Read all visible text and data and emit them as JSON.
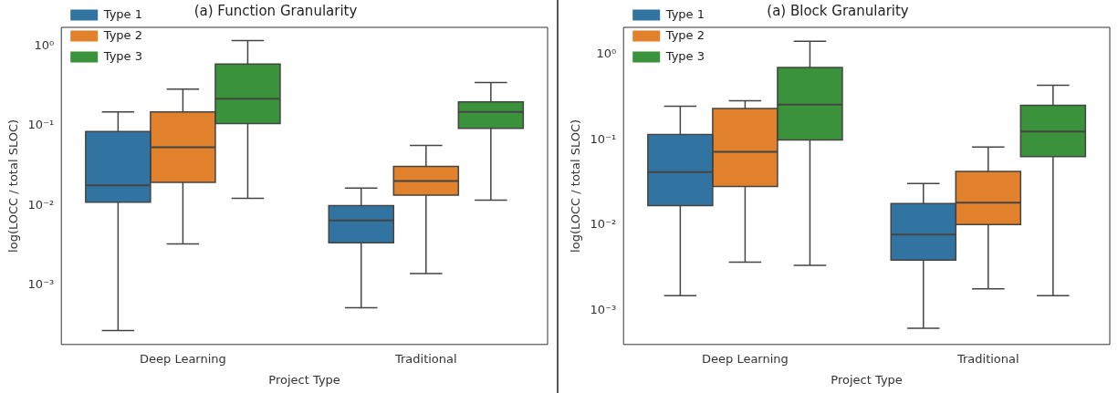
{
  "chart_data": [
    {
      "type": "box",
      "title": "(a) Function Granularity",
      "xlabel": "Project Type",
      "ylabel": "log(LOCC / total SLOC)",
      "log": "y",
      "legend": "top left",
      "categories": [
        "Deep Learning",
        "Traditional"
      ],
      "ylim": [
        0.00018,
        1.73
      ],
      "yticks": [
        {
          "value": 0.001,
          "label": "10⁻³"
        },
        {
          "value": 0.01,
          "label": "10⁻²"
        },
        {
          "value": 0.1,
          "label": "10⁻¹"
        },
        {
          "value": 1,
          "label": "10⁰"
        }
      ],
      "series": [
        {
          "name": "Type 1",
          "color": "#3274a1",
          "boxes": [
            {
              "low": 0.00027,
              "q1": 0.011,
              "median": 0.018,
              "q3": 0.085,
              "high": 0.15
            },
            {
              "low": 0.00052,
              "q1": 0.0034,
              "median": 0.0065,
              "q3": 0.01,
              "high": 0.0166
            }
          ]
        },
        {
          "name": "Type 2",
          "color": "#e1812c",
          "boxes": [
            {
              "low": 0.0033,
              "q1": 0.0195,
              "median": 0.054,
              "q3": 0.15,
              "high": 0.29
            },
            {
              "low": 0.0014,
              "q1": 0.0135,
              "median": 0.0204,
              "q3": 0.031,
              "high": 0.057
            }
          ]
        },
        {
          "name": "Type 3",
          "color": "#3a923a",
          "boxes": [
            {
              "low": 0.0123,
              "q1": 0.107,
              "median": 0.22,
              "q3": 0.6,
              "high": 1.18
            },
            {
              "low": 0.0117,
              "q1": 0.093,
              "median": 0.15,
              "q3": 0.2,
              "high": 0.35
            }
          ]
        }
      ]
    },
    {
      "type": "box",
      "title": "(a) Block Granularity",
      "xlabel": "Project Type",
      "ylabel": "log(LOCC / total SLOC)",
      "log": "y",
      "legend": "top left",
      "categories": [
        "Deep Learning",
        "Traditional"
      ],
      "ylim": [
        0.0004,
        2.1
      ],
      "yticks": [
        {
          "value": 0.001,
          "label": "10⁻³"
        },
        {
          "value": 0.01,
          "label": "10⁻²"
        },
        {
          "value": 0.1,
          "label": "10⁻¹"
        },
        {
          "value": 1,
          "label": "10⁰"
        }
      ],
      "series": [
        {
          "name": "Type 1",
          "color": "#3274a1",
          "boxes": [
            {
              "low": 0.0015,
              "q1": 0.017,
              "median": 0.042,
              "q3": 0.116,
              "high": 0.25
            },
            {
              "low": 0.00062,
              "q1": 0.0039,
              "median": 0.0078,
              "q3": 0.018,
              "high": 0.031
            }
          ]
        },
        {
          "name": "Type 2",
          "color": "#e1812c",
          "boxes": [
            {
              "low": 0.0037,
              "q1": 0.0285,
              "median": 0.073,
              "q3": 0.235,
              "high": 0.29
            },
            {
              "low": 0.0018,
              "q1": 0.0102,
              "median": 0.0185,
              "q3": 0.043,
              "high": 0.083
            }
          ]
        },
        {
          "name": "Type 3",
          "color": "#3a923a",
          "boxes": [
            {
              "low": 0.0034,
              "q1": 0.1,
              "median": 0.26,
              "q3": 0.71,
              "high": 1.44
            },
            {
              "low": 0.0015,
              "q1": 0.064,
              "median": 0.126,
              "q3": 0.255,
              "high": 0.44
            }
          ]
        }
      ]
    }
  ]
}
